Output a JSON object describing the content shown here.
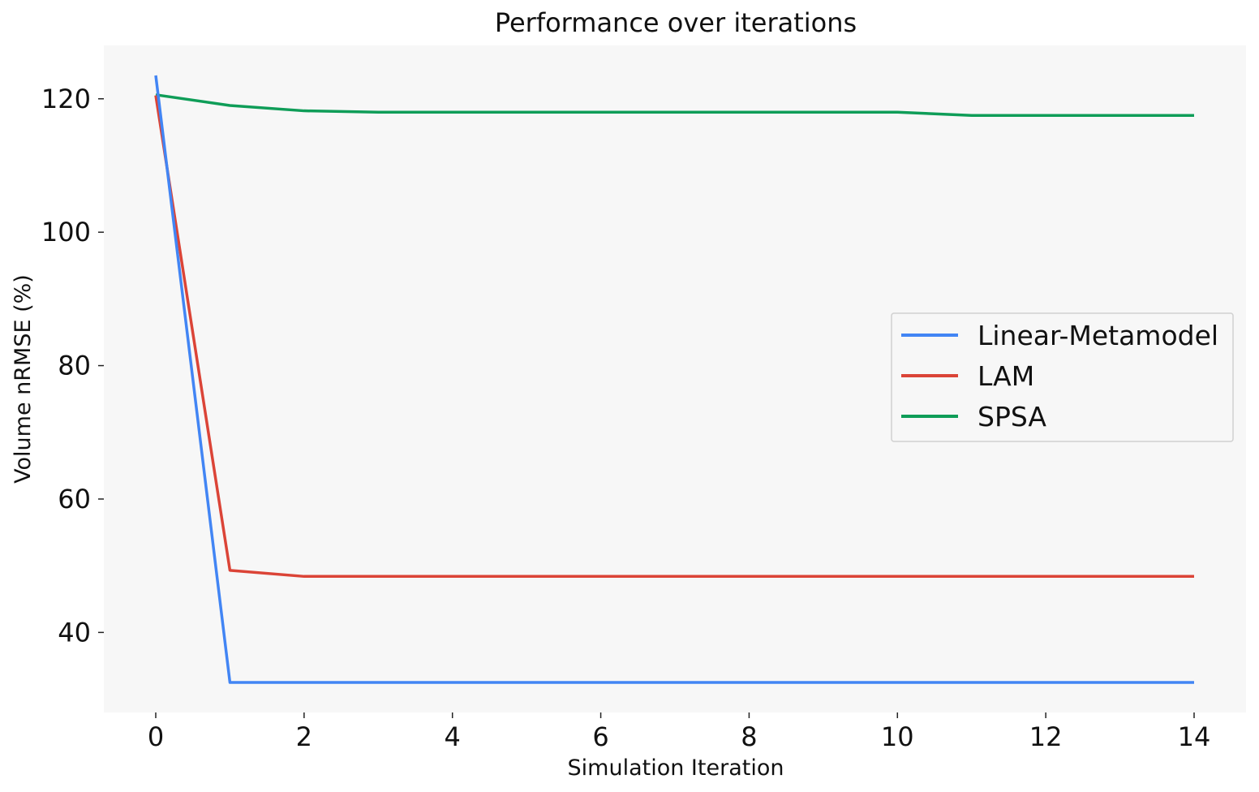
{
  "chart_data": {
    "type": "line",
    "title": "Performance over iterations",
    "xlabel": "Simulation Iteration",
    "ylabel": "Volume nRMSE (%)",
    "xlim": [
      -0.7,
      14.7
    ],
    "ylim": [
      28,
      128
    ],
    "xticks": [
      0,
      2,
      4,
      6,
      8,
      10,
      12,
      14
    ],
    "yticks": [
      40,
      60,
      80,
      100,
      120
    ],
    "grid": false,
    "legend_position": "center-right",
    "x": [
      0,
      1,
      2,
      3,
      4,
      5,
      6,
      7,
      8,
      9,
      10,
      11,
      12,
      13,
      14
    ],
    "series": [
      {
        "name": "Linear-Metamodel",
        "color": "#4285f4",
        "values": [
          123.5,
          32.5,
          32.5,
          32.5,
          32.5,
          32.5,
          32.5,
          32.5,
          32.5,
          32.5,
          32.5,
          32.5,
          32.5,
          32.5,
          32.5
        ]
      },
      {
        "name": "LAM",
        "color": "#db4437",
        "values": [
          120.5,
          49.3,
          48.4,
          48.4,
          48.4,
          48.4,
          48.4,
          48.4,
          48.4,
          48.4,
          48.4,
          48.4,
          48.4,
          48.4,
          48.4
        ]
      },
      {
        "name": "SPSA",
        "color": "#0f9d58",
        "values": [
          120.6,
          119.0,
          118.2,
          118.0,
          118.0,
          118.0,
          118.0,
          118.0,
          118.0,
          118.0,
          118.0,
          117.5,
          117.5,
          117.5,
          117.5
        ]
      }
    ],
    "colors": {
      "plot_background": "#f7f7f7",
      "legend_border": "#d0d0d0"
    }
  }
}
